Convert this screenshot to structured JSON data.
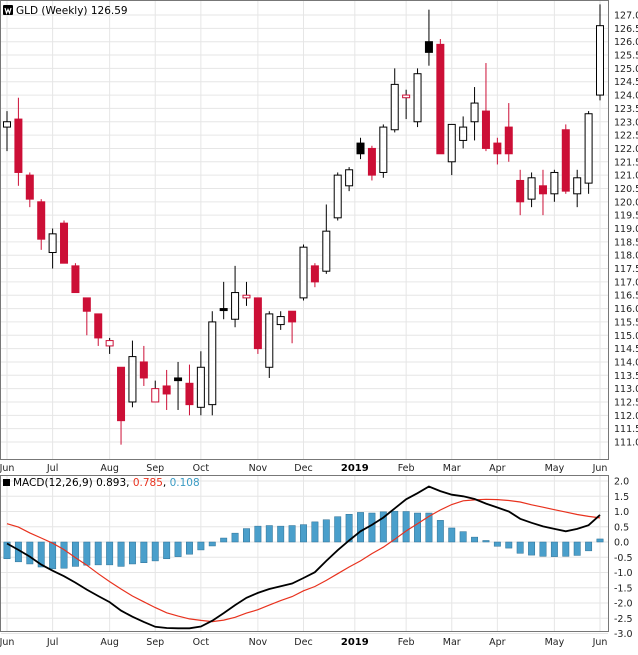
{
  "chart_data": [
    {
      "type": "candlestick",
      "symbol": "GLD",
      "title": "GLD (Weekly) 126.59",
      "logo_icon": "stockcharts-logo-icon",
      "colors": {
        "up": "#ffffff",
        "down": "#cc0f36",
        "outline": "#000000",
        "grid": "#e6e6e6"
      },
      "y_axis": {
        "position": "right",
        "ylim": [
          110.6,
          127.4
        ],
        "ticks": [
          111.0,
          111.5,
          112.0,
          112.5,
          113.0,
          113.5,
          114.0,
          114.5,
          115.0,
          115.5,
          116.0,
          116.5,
          117.0,
          117.5,
          118.0,
          118.5,
          119.0,
          119.5,
          120.0,
          120.5,
          121.0,
          121.5,
          122.0,
          122.5,
          123.0,
          123.5,
          124.0,
          124.5,
          125.0,
          125.5,
          126.0,
          126.5,
          127.0
        ],
        "tick_labels": [
          "111.0",
          "111.5",
          "112.0",
          "112.5",
          "113.0",
          "113.5",
          "114.0",
          "114.5",
          "115.0",
          "115.5",
          "116.0",
          "116.5",
          "117.0",
          "117.5",
          "118.0",
          "118.5",
          "119.0",
          "119.5",
          "120.0",
          "120.5",
          "121.0",
          "121.5",
          "122.0",
          "122.5",
          "123.0",
          "123.5",
          "124.0",
          "124.5",
          "125.0",
          "125.5",
          "126.0",
          "126.5",
          "127.0"
        ]
      },
      "x_axis": {
        "labels": [
          {
            "text": "Jun",
            "week": 0,
            "bold": false
          },
          {
            "text": "Jul",
            "week": 4,
            "bold": false
          },
          {
            "text": "Aug",
            "week": 9,
            "bold": false
          },
          {
            "text": "Sep",
            "week": 13,
            "bold": false
          },
          {
            "text": "Oct",
            "week": 17,
            "bold": false
          },
          {
            "text": "Nov",
            "week": 22,
            "bold": false
          },
          {
            "text": "Dec",
            "week": 26,
            "bold": false
          },
          {
            "text": "2019",
            "week": 30.5,
            "bold": true
          },
          {
            "text": "Feb",
            "week": 35,
            "bold": false
          },
          {
            "text": "Mar",
            "week": 39,
            "bold": false
          },
          {
            "text": "Apr",
            "week": 43,
            "bold": false
          },
          {
            "text": "May",
            "week": 48,
            "bold": false
          },
          {
            "text": "Jun",
            "week": 52,
            "bold": false
          }
        ]
      },
      "candles": [
        {
          "o": 122.8,
          "h": 123.4,
          "l": 121.9,
          "c": 123.0,
          "color": "up"
        },
        {
          "o": 123.1,
          "h": 123.9,
          "l": 120.6,
          "c": 121.1,
          "color": "down"
        },
        {
          "o": 121.0,
          "h": 121.1,
          "l": 119.8,
          "c": 120.1,
          "color": "down"
        },
        {
          "o": 120.0,
          "h": 120.1,
          "l": 118.2,
          "c": 118.6,
          "color": "down"
        },
        {
          "o": 118.1,
          "h": 119.0,
          "l": 117.5,
          "c": 118.8,
          "color": "up"
        },
        {
          "o": 119.2,
          "h": 119.3,
          "l": 117.7,
          "c": 117.7,
          "color": "down"
        },
        {
          "o": 117.6,
          "h": 117.7,
          "l": 116.6,
          "c": 116.6,
          "color": "down"
        },
        {
          "o": 116.4,
          "h": 116.4,
          "l": 115.0,
          "c": 115.9,
          "color": "down"
        },
        {
          "o": 115.8,
          "h": 115.8,
          "l": 114.6,
          "c": 114.9,
          "color": "down"
        },
        {
          "o": 114.6,
          "h": 114.9,
          "l": 114.3,
          "c": 114.8,
          "color": "hollow-red"
        },
        {
          "o": 113.8,
          "h": 113.8,
          "l": 110.9,
          "c": 111.8,
          "color": "down"
        },
        {
          "o": 112.5,
          "h": 114.8,
          "l": 112.3,
          "c": 114.2,
          "color": "up"
        },
        {
          "o": 114.0,
          "h": 114.6,
          "l": 113.1,
          "c": 113.4,
          "color": "down"
        },
        {
          "o": 112.5,
          "h": 113.3,
          "l": 112.5,
          "c": 113.0,
          "color": "hollow-red"
        },
        {
          "o": 113.1,
          "h": 113.7,
          "l": 112.2,
          "c": 112.8,
          "color": "down"
        },
        {
          "o": 113.4,
          "h": 114.0,
          "l": 112.2,
          "c": 113.3,
          "color": "black"
        },
        {
          "o": 113.2,
          "h": 113.9,
          "l": 112.0,
          "c": 112.4,
          "color": "down"
        },
        {
          "o": 112.3,
          "h": 114.4,
          "l": 112.0,
          "c": 113.8,
          "color": "up"
        },
        {
          "o": 112.4,
          "h": 115.9,
          "l": 112.0,
          "c": 115.5,
          "color": "up"
        },
        {
          "o": 116.0,
          "h": 117.0,
          "l": 115.6,
          "c": 116.0,
          "color": "black"
        },
        {
          "o": 115.6,
          "h": 117.6,
          "l": 115.3,
          "c": 116.6,
          "color": "up"
        },
        {
          "o": 116.5,
          "h": 117.0,
          "l": 116.1,
          "c": 116.4,
          "color": "hollow-red"
        },
        {
          "o": 116.4,
          "h": 116.4,
          "l": 114.3,
          "c": 114.5,
          "color": "down"
        },
        {
          "o": 113.8,
          "h": 115.9,
          "l": 113.4,
          "c": 115.8,
          "color": "up"
        },
        {
          "o": 115.4,
          "h": 115.9,
          "l": 115.2,
          "c": 115.7,
          "color": "up"
        },
        {
          "o": 115.9,
          "h": 115.9,
          "l": 114.7,
          "c": 115.5,
          "color": "down"
        },
        {
          "o": 116.4,
          "h": 118.4,
          "l": 116.3,
          "c": 118.3,
          "color": "up"
        },
        {
          "o": 117.6,
          "h": 117.7,
          "l": 116.8,
          "c": 117.0,
          "color": "down"
        },
        {
          "o": 117.4,
          "h": 119.9,
          "l": 117.3,
          "c": 118.9,
          "color": "up"
        },
        {
          "o": 119.4,
          "h": 121.1,
          "l": 119.3,
          "c": 121.0,
          "color": "up"
        },
        {
          "o": 120.6,
          "h": 121.3,
          "l": 120.4,
          "c": 121.2,
          "color": "up"
        },
        {
          "o": 121.8,
          "h": 122.4,
          "l": 121.6,
          "c": 122.2,
          "color": "black"
        },
        {
          "o": 122.0,
          "h": 122.1,
          "l": 120.8,
          "c": 121.0,
          "color": "down"
        },
        {
          "o": 121.1,
          "h": 122.9,
          "l": 120.9,
          "c": 122.8,
          "color": "up"
        },
        {
          "o": 122.7,
          "h": 125.0,
          "l": 122.6,
          "c": 124.4,
          "color": "up"
        },
        {
          "o": 124.0,
          "h": 124.2,
          "l": 123.1,
          "c": 123.9,
          "color": "hollow-red"
        },
        {
          "o": 123.0,
          "h": 125.0,
          "l": 122.8,
          "c": 124.8,
          "color": "up"
        },
        {
          "o": 125.6,
          "h": 127.2,
          "l": 125.1,
          "c": 126.0,
          "color": "black"
        },
        {
          "o": 125.9,
          "h": 126.1,
          "l": 121.8,
          "c": 121.8,
          "color": "down"
        },
        {
          "o": 121.5,
          "h": 122.9,
          "l": 121.0,
          "c": 122.9,
          "color": "up"
        },
        {
          "o": 122.3,
          "h": 123.2,
          "l": 122.0,
          "c": 122.8,
          "color": "up"
        },
        {
          "o": 123.0,
          "h": 124.3,
          "l": 122.3,
          "c": 123.7,
          "color": "up"
        },
        {
          "o": 123.4,
          "h": 125.2,
          "l": 121.9,
          "c": 122.0,
          "color": "down"
        },
        {
          "o": 122.2,
          "h": 122.4,
          "l": 121.4,
          "c": 121.8,
          "color": "down"
        },
        {
          "o": 122.8,
          "h": 123.7,
          "l": 121.5,
          "c": 121.8,
          "color": "down"
        },
        {
          "o": 120.8,
          "h": 121.2,
          "l": 119.5,
          "c": 120.0,
          "color": "down"
        },
        {
          "o": 120.1,
          "h": 121.1,
          "l": 119.8,
          "c": 120.9,
          "color": "up"
        },
        {
          "o": 120.6,
          "h": 121.2,
          "l": 119.5,
          "c": 120.3,
          "color": "down"
        },
        {
          "o": 120.3,
          "h": 121.2,
          "l": 120.0,
          "c": 121.1,
          "color": "up"
        },
        {
          "o": 122.7,
          "h": 122.9,
          "l": 120.3,
          "c": 120.4,
          "color": "down"
        },
        {
          "o": 120.3,
          "h": 121.2,
          "l": 119.8,
          "c": 120.9,
          "color": "up"
        },
        {
          "o": 120.7,
          "h": 123.4,
          "l": 120.3,
          "c": 123.3,
          "color": "up"
        },
        {
          "o": 124.0,
          "h": 127.4,
          "l": 123.8,
          "c": 126.6,
          "color": "up"
        }
      ]
    },
    {
      "type": "line+bar",
      "indicator": "MACD(12,26,9)",
      "legend": [
        {
          "text": "MACD(12,26,9)",
          "color": "#000000"
        },
        {
          "text": "0.893",
          "color": "#000000"
        },
        {
          "text": "0.785",
          "color": "#e8321e"
        },
        {
          "text": "0.108",
          "color": "#3a9bc4"
        }
      ],
      "y_axis": {
        "position": "right",
        "ylim": [
          -3.0,
          2.0
        ],
        "ticks": [
          -3.0,
          -2.5,
          -2.0,
          -1.5,
          -1.0,
          -0.5,
          0.0,
          0.5,
          1.0,
          1.5,
          2.0
        ],
        "tick_labels": [
          "-3.0",
          "-2.5",
          "-2.0",
          "-1.5",
          "-1.0",
          "-0.5",
          "0.0",
          "0.5",
          "1.0",
          "1.5",
          "2.0"
        ]
      },
      "colors": {
        "macd": "#000000",
        "signal": "#e8321e",
        "histogram": "#4a9fcb",
        "histogram_edge": "#2d6f93"
      },
      "series": [
        {
          "name": "MACD(12,26,9)",
          "values": [
            -0.05,
            -0.26,
            -0.48,
            -0.74,
            -0.94,
            -1.12,
            -1.33,
            -1.56,
            -1.77,
            -1.97,
            -2.25,
            -2.45,
            -2.62,
            -2.78,
            -2.82,
            -2.83,
            -2.83,
            -2.77,
            -2.58,
            -2.33,
            -2.07,
            -1.83,
            -1.67,
            -1.54,
            -1.45,
            -1.36,
            -1.18,
            -0.99,
            -0.62,
            -0.27,
            0.05,
            0.35,
            0.56,
            0.8,
            1.1,
            1.4,
            1.6,
            1.82,
            1.67,
            1.55,
            1.5,
            1.41,
            1.26,
            1.13,
            1.0,
            0.76,
            0.63,
            0.51,
            0.43,
            0.35,
            0.43,
            0.55,
            0.89
          ]
        },
        {
          "name": "signal",
          "values": [
            0.6,
            0.49,
            0.3,
            0.13,
            -0.04,
            -0.25,
            -0.51,
            -0.76,
            -1.04,
            -1.3,
            -1.54,
            -1.77,
            -1.96,
            -2.15,
            -2.32,
            -2.43,
            -2.52,
            -2.57,
            -2.61,
            -2.56,
            -2.47,
            -2.33,
            -2.22,
            -2.07,
            -1.92,
            -1.79,
            -1.6,
            -1.46,
            -1.26,
            -1.04,
            -0.82,
            -0.62,
            -0.38,
            -0.17,
            0.09,
            0.36,
            0.6,
            0.84,
            1.05,
            1.23,
            1.35,
            1.38,
            1.4,
            1.39,
            1.36,
            1.31,
            1.22,
            1.14,
            1.06,
            0.98,
            0.9,
            0.84,
            0.79
          ]
        },
        {
          "name": "histogram",
          "values": [
            -0.55,
            -0.65,
            -0.72,
            -0.82,
            -0.88,
            -0.86,
            -0.8,
            -0.76,
            -0.75,
            -0.75,
            -0.8,
            -0.72,
            -0.68,
            -0.62,
            -0.55,
            -0.48,
            -0.4,
            -0.26,
            -0.13,
            0.13,
            0.29,
            0.44,
            0.52,
            0.54,
            0.52,
            0.54,
            0.57,
            0.66,
            0.73,
            0.83,
            0.91,
            0.97,
            0.95,
            0.99,
            1.01,
            1.0,
            0.95,
            0.95,
            0.71,
            0.46,
            0.34,
            0.16,
            0.05,
            -0.14,
            -0.2,
            -0.37,
            -0.43,
            -0.47,
            -0.48,
            -0.47,
            -0.44,
            -0.29,
            0.1
          ]
        }
      ],
      "x_axis": {
        "labels": [
          {
            "text": "Jun",
            "week": 0,
            "bold": false
          },
          {
            "text": "Jul",
            "week": 4,
            "bold": false
          },
          {
            "text": "Aug",
            "week": 9,
            "bold": false
          },
          {
            "text": "Sep",
            "week": 13,
            "bold": false
          },
          {
            "text": "Oct",
            "week": 17,
            "bold": false
          },
          {
            "text": "Nov",
            "week": 22,
            "bold": false
          },
          {
            "text": "Dec",
            "week": 26,
            "bold": false
          },
          {
            "text": "2019",
            "week": 30.5,
            "bold": true
          },
          {
            "text": "Feb",
            "week": 35,
            "bold": false
          },
          {
            "text": "Mar",
            "week": 39,
            "bold": false
          },
          {
            "text": "Apr",
            "week": 43,
            "bold": false
          },
          {
            "text": "May",
            "week": 48,
            "bold": false
          },
          {
            "text": "Jun",
            "week": 52,
            "bold": false
          }
        ]
      }
    }
  ]
}
